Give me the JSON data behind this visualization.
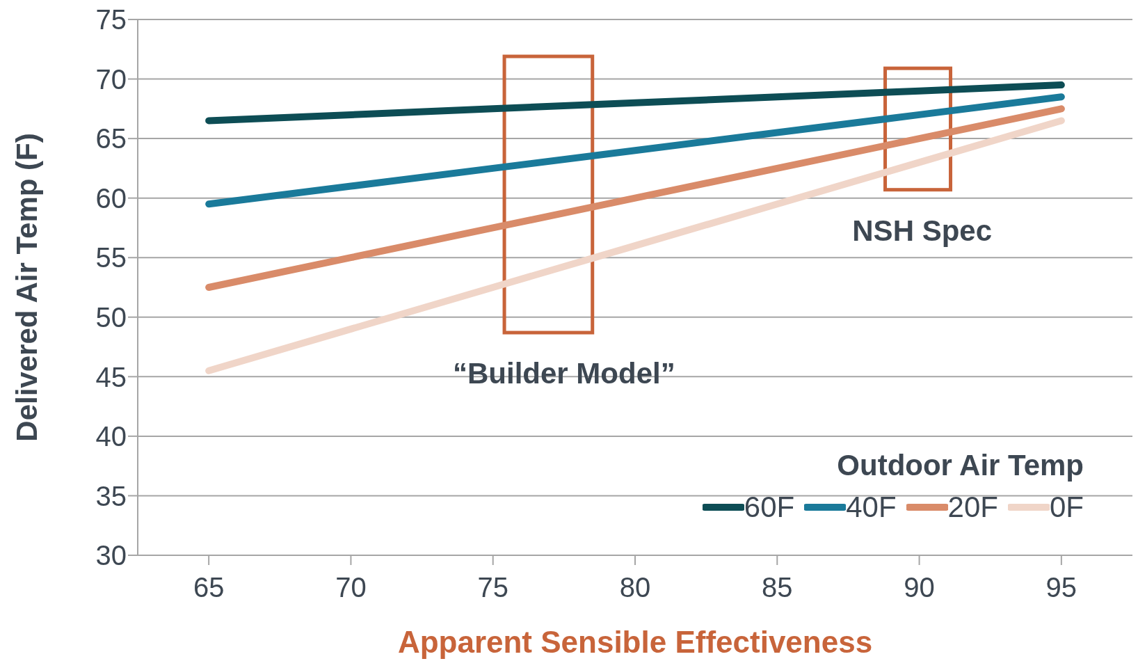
{
  "chart_data": {
    "type": "line",
    "xlabel": "Apparent Sensible Effectiveness",
    "ylabel": "Delivered Air Temp (F)",
    "legend_title": "Outdoor Air Temp",
    "x": [
      65,
      70,
      75,
      80,
      85,
      90,
      95
    ],
    "series": [
      {
        "name": "60F",
        "color": "#0d4d55",
        "values": [
          66.5,
          67,
          67.5,
          68,
          68.5,
          69,
          69.5
        ]
      },
      {
        "name": "40F",
        "color": "#1a7a9a",
        "values": [
          59.5,
          61,
          62.5,
          64,
          65.5,
          67,
          68.5
        ]
      },
      {
        "name": "20F",
        "color": "#d98b69",
        "values": [
          52.5,
          55,
          57.5,
          60,
          62.5,
          65,
          67.5
        ]
      },
      {
        "name": "0F",
        "color": "#f0d5c8",
        "values": [
          45.5,
          49,
          52.5,
          56,
          59.5,
          63,
          66.5
        ]
      }
    ],
    "xlim": [
      62.5,
      97.5
    ],
    "xticks": [
      65,
      70,
      75,
      80,
      85,
      90,
      95
    ],
    "ylim": [
      30,
      75
    ],
    "yticks": [
      30,
      35,
      40,
      45,
      50,
      55,
      60,
      65,
      70,
      75
    ],
    "grid": "y",
    "legend": "bottom right",
    "marker": "none",
    "line_style": "solid",
    "annotations": [
      "“Builder Model”",
      "NSH Spec"
    ]
  }
}
